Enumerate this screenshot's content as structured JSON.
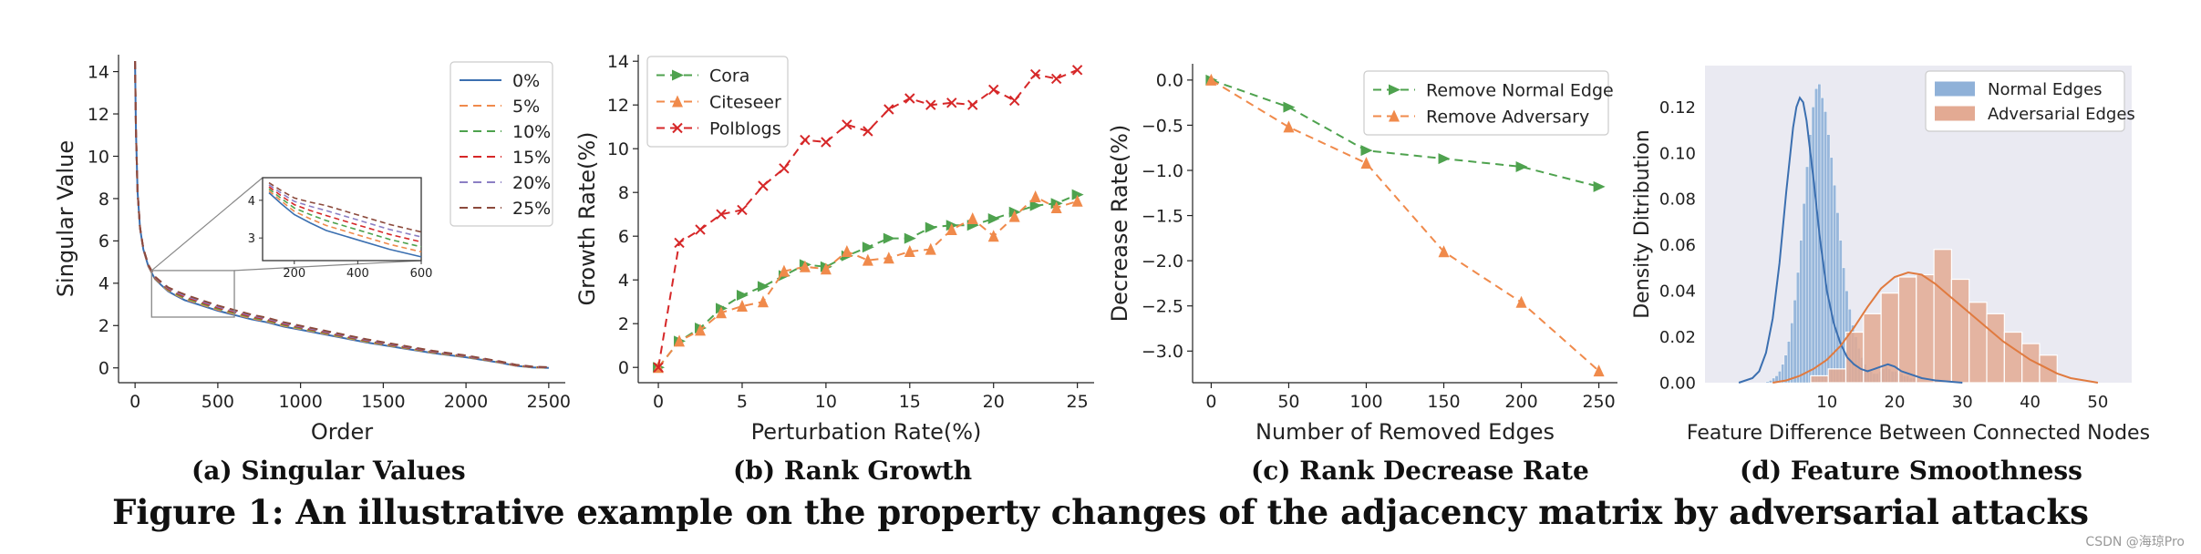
{
  "figure": {
    "caption": "Figure 1: An illustrative example on the property changes of the adjacency matrix by adversarial attacks",
    "watermark": "CSDN @海琼Pro"
  },
  "chart_data": [
    {
      "id": "a",
      "type": "line",
      "caption": "(a) Singular Values",
      "xlabel": "Order",
      "ylabel": "Singular Value",
      "xlim": [
        -100,
        2600
      ],
      "ylim": [
        -0.7,
        14.8
      ],
      "xticks": [
        0,
        500,
        1000,
        1500,
        2000,
        2500
      ],
      "yticks": [
        0,
        2,
        4,
        6,
        8,
        10,
        12,
        14
      ],
      "legend": "top-right",
      "series": [
        {
          "name": "0%",
          "color": "#3b6fb0",
          "dash": "",
          "offset": 0
        },
        {
          "name": "5%",
          "color": "#f08a4b",
          "dash": "9,6",
          "offset": 0.06
        },
        {
          "name": "10%",
          "color": "#4ea24e",
          "dash": "9,6",
          "offset": 0.12
        },
        {
          "name": "15%",
          "color": "#d62728",
          "dash": "9,6",
          "offset": 0.18
        },
        {
          "name": "20%",
          "color": "#8c7fc4",
          "dash": "9,6",
          "offset": 0.24
        },
        {
          "name": "25%",
          "color": "#8c4a3c",
          "dash": "9,6",
          "offset": 0.3
        }
      ],
      "curve_x": [
        0,
        5,
        15,
        30,
        50,
        80,
        120,
        160,
        200,
        250,
        300,
        400,
        500,
        600,
        700,
        800,
        900,
        1000,
        1200,
        1400,
        1600,
        1800,
        2000,
        2200,
        2300,
        2400,
        2500
      ],
      "curve_y": [
        14.5,
        11.2,
        8.3,
        6.6,
        5.6,
        4.8,
        4.2,
        3.9,
        3.62,
        3.4,
        3.2,
        2.95,
        2.7,
        2.5,
        2.3,
        2.15,
        1.95,
        1.8,
        1.5,
        1.2,
        0.95,
        0.7,
        0.5,
        0.25,
        0.1,
        0.02,
        0.0
      ],
      "inset": {
        "xlim": [
          100,
          600
        ],
        "ylim": [
          2.4,
          4.6
        ],
        "xticks": [
          200,
          400,
          600
        ],
        "yticks": [
          3,
          4
        ]
      }
    },
    {
      "id": "b",
      "type": "line",
      "caption": "(b) Rank Growth",
      "xlabel": "Perturbation Rate(%)",
      "ylabel": "Growth Rate(%)",
      "xlim": [
        -1.2,
        26
      ],
      "ylim": [
        -0.7,
        14.3
      ],
      "xticks": [
        0,
        5,
        10,
        15,
        20,
        25
      ],
      "yticks": [
        0,
        2,
        4,
        6,
        8,
        10,
        12,
        14
      ],
      "legend": "top-left",
      "x": [
        0,
        1.25,
        2.5,
        3.75,
        5,
        6.25,
        7.5,
        8.75,
        10,
        11.25,
        12.5,
        13.75,
        15,
        16.25,
        17.5,
        18.75,
        20,
        21.25,
        22.5,
        23.75,
        25
      ],
      "series": [
        {
          "name": "Cora",
          "color": "#4ea24e",
          "marker": "triangle-right",
          "values": [
            0.0,
            1.2,
            1.8,
            2.7,
            3.3,
            3.7,
            4.2,
            4.7,
            4.6,
            5.1,
            5.5,
            5.9,
            5.9,
            6.4,
            6.5,
            6.5,
            6.8,
            7.1,
            7.4,
            7.5,
            7.9
          ]
        },
        {
          "name": "Citeseer",
          "color": "#f08a4b",
          "marker": "triangle-up",
          "values": [
            0.0,
            1.2,
            1.7,
            2.5,
            2.8,
            3.0,
            4.4,
            4.6,
            4.5,
            5.3,
            4.9,
            5.0,
            5.3,
            5.4,
            6.3,
            6.8,
            6.0,
            6.9,
            7.8,
            7.3,
            7.6
          ]
        },
        {
          "name": "Polblogs",
          "color": "#d62728",
          "marker": "x",
          "values": [
            0.0,
            5.7,
            6.3,
            7.0,
            7.2,
            8.3,
            9.1,
            10.4,
            10.3,
            11.1,
            10.8,
            11.8,
            12.3,
            12.0,
            12.1,
            12.0,
            12.7,
            12.2,
            13.4,
            13.2,
            13.6
          ]
        }
      ]
    },
    {
      "id": "c",
      "type": "line",
      "caption": "(c) Rank Decrease Rate",
      "xlabel": "Number of Removed Edges",
      "ylabel": "Decrease Rate(%)",
      "xlim": [
        -12,
        262
      ],
      "ylim": [
        -3.35,
        0.18
      ],
      "xticks": [
        0,
        50,
        100,
        150,
        200,
        250
      ],
      "yticks": [
        0.0,
        -0.5,
        -1.0,
        -1.5,
        -2.0,
        -2.5,
        -3.0
      ],
      "ytick_labels": [
        "0.0",
        "−0.5",
        "−1.0",
        "−1.5",
        "−2.0",
        "−2.5",
        "−3.0"
      ],
      "legend": "top-right",
      "x": [
        0,
        50,
        100,
        150,
        200,
        250
      ],
      "series": [
        {
          "name": "Remove Normal Edge",
          "color": "#4ea24e",
          "marker": "triangle-right",
          "values": [
            0.0,
            -0.3,
            -0.78,
            -0.87,
            -0.96,
            -1.18
          ]
        },
        {
          "name": "Remove Adversary",
          "color": "#f08a4b",
          "marker": "triangle-up",
          "values": [
            0.0,
            -0.52,
            -0.92,
            -1.9,
            -2.46,
            -3.22
          ]
        }
      ]
    },
    {
      "id": "d",
      "type": "area",
      "caption": "(d) Feature Smoothness",
      "xlabel": "Feature Difference Between Connected Nodes",
      "ylabel": "Density Ditribution",
      "xlim": [
        -8,
        55
      ],
      "ylim": [
        0,
        0.138
      ],
      "xticks": [
        10,
        20,
        30,
        40,
        50
      ],
      "yticks": [
        0.0,
        0.02,
        0.04,
        0.06,
        0.08,
        0.1,
        0.12
      ],
      "ytick_labels": [
        "0.00",
        "0.02",
        "0.04",
        "0.06",
        "0.08",
        "0.10",
        "0.12"
      ],
      "legend": "top-right",
      "series": [
        {
          "name": "Normal Edges",
          "color": "#8fb1d8",
          "line_color": "#3b6fb0",
          "bin_start": 1,
          "bin_width": 0.45,
          "hist": [
            0.0005,
            0.001,
            0.002,
            0.003,
            0.005,
            0.008,
            0.012,
            0.018,
            0.026,
            0.036,
            0.048,
            0.062,
            0.078,
            0.094,
            0.108,
            0.12,
            0.128,
            0.13,
            0.124,
            0.118,
            0.108,
            0.098,
            0.086,
            0.074,
            0.062,
            0.05,
            0.04,
            0.032,
            0.025,
            0.02,
            0.015,
            0.011,
            0.008,
            0.006,
            0.005,
            0.004,
            0.004,
            0.005,
            0.006,
            0.007,
            0.006,
            0.005,
            0.005,
            0.004,
            0.004,
            0.003,
            0.003,
            0.002,
            0.002,
            0.001
          ],
          "kde_x": [
            -3,
            -1,
            0,
            1,
            2,
            3,
            4,
            5,
            5.5,
            6,
            6.5,
            7,
            8,
            9,
            10,
            11,
            12,
            13,
            14,
            15,
            16,
            17,
            18,
            19,
            20,
            21,
            22,
            23,
            24,
            25,
            26,
            28,
            30
          ],
          "kde_y": [
            0.0,
            0.002,
            0.005,
            0.013,
            0.028,
            0.052,
            0.083,
            0.111,
            0.12,
            0.124,
            0.122,
            0.114,
            0.089,
            0.062,
            0.04,
            0.026,
            0.017,
            0.011,
            0.008,
            0.006,
            0.005,
            0.006,
            0.007,
            0.008,
            0.007,
            0.005,
            0.004,
            0.003,
            0.002,
            0.0015,
            0.001,
            0.0005,
            0.0
          ]
        },
        {
          "name": "Adversarial Edges",
          "color": "#e3aa93",
          "line_color": "#e07a3f",
          "bin_start": 5,
          "bin_width": 2.6,
          "hist": [
            0.0,
            0.003,
            0.006,
            0.022,
            0.03,
            0.039,
            0.046,
            0.047,
            0.058,
            0.045,
            0.035,
            0.03,
            0.022,
            0.017,
            0.012
          ],
          "kde_x": [
            2,
            4,
            6,
            8,
            10,
            12,
            14,
            16,
            18,
            20,
            22,
            24,
            26,
            28,
            30,
            32,
            34,
            36,
            38,
            40,
            42,
            44,
            46,
            48,
            50
          ],
          "kde_y": [
            0.0,
            0.001,
            0.003,
            0.006,
            0.01,
            0.016,
            0.024,
            0.033,
            0.041,
            0.046,
            0.048,
            0.047,
            0.043,
            0.038,
            0.033,
            0.028,
            0.023,
            0.018,
            0.014,
            0.01,
            0.007,
            0.004,
            0.002,
            0.001,
            0.0
          ]
        }
      ]
    }
  ]
}
